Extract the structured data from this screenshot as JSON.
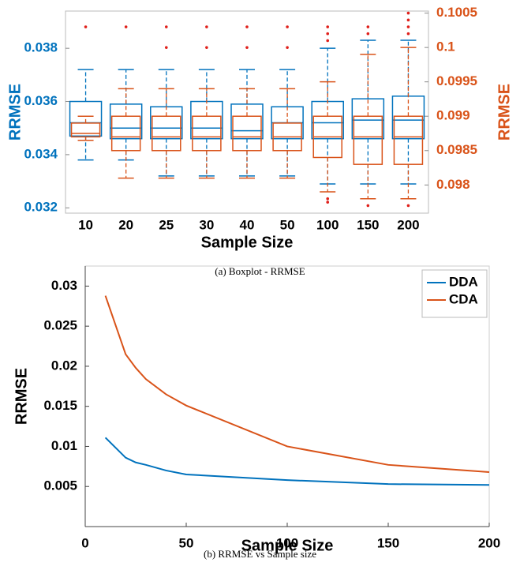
{
  "chart_data": [
    {
      "type": "box",
      "caption": "(a) Boxplot - RRMSE",
      "x_label": "Sample Size",
      "y_label": "RRMSE",
      "y2_label": "RRMSE",
      "categories": [
        "10",
        "20",
        "25",
        "30",
        "40",
        "50",
        "100",
        "150",
        "200"
      ],
      "ylim": [
        0.0318,
        0.0394
      ],
      "yticks": [
        0.032,
        0.034,
        0.036,
        0.038
      ],
      "y2lim": [
        0.09759,
        0.10053
      ],
      "y2ticks": [
        0.098,
        0.0985,
        0.099,
        0.0995,
        0.1,
        0.1005
      ],
      "series": [
        {
          "color": "#0072BD",
          "axis": "y",
          "boxes": [
            {
              "low": 0.0338,
              "q1": 0.0347,
              "median": 0.0352,
              "q3": 0.036,
              "high": 0.0372,
              "outliers": []
            },
            {
              "low": 0.0338,
              "q1": 0.0346,
              "median": 0.035,
              "q3": 0.0359,
              "high": 0.0372,
              "outliers": []
            },
            {
              "low": 0.0332,
              "q1": 0.0346,
              "median": 0.035,
              "q3": 0.0358,
              "high": 0.0372,
              "outliers": []
            },
            {
              "low": 0.0332,
              "q1": 0.0346,
              "median": 0.035,
              "q3": 0.036,
              "high": 0.0372,
              "outliers": []
            },
            {
              "low": 0.0332,
              "q1": 0.0346,
              "median": 0.0349,
              "q3": 0.0359,
              "high": 0.0372,
              "outliers": []
            },
            {
              "low": 0.0332,
              "q1": 0.0346,
              "median": 0.0352,
              "q3": 0.0358,
              "high": 0.0372,
              "outliers": []
            },
            {
              "low": 0.0329,
              "q1": 0.0346,
              "median": 0.0352,
              "q3": 0.036,
              "high": 0.038,
              "outliers": []
            },
            {
              "low": 0.0329,
              "q1": 0.0346,
              "median": 0.0353,
              "q3": 0.0361,
              "high": 0.0383,
              "outliers": []
            },
            {
              "low": 0.0329,
              "q1": 0.0346,
              "median": 0.0353,
              "q3": 0.0362,
              "high": 0.0383,
              "outliers": []
            }
          ]
        },
        {
          "color": "#D95319",
          "axis": "y2",
          "boxes": [
            {
              "low": 0.09865,
              "q1": 0.0987,
              "median": 0.09875,
              "q3": 0.0989,
              "high": 0.099,
              "outliers": [
                0.1003
              ]
            },
            {
              "low": 0.0981,
              "q1": 0.0985,
              "median": 0.0987,
              "q3": 0.099,
              "high": 0.0994,
              "outliers": [
                0.1003
              ]
            },
            {
              "low": 0.0981,
              "q1": 0.0985,
              "median": 0.0987,
              "q3": 0.099,
              "high": 0.0994,
              "outliers": [
                0.1003,
                0.1
              ]
            },
            {
              "low": 0.0981,
              "q1": 0.0985,
              "median": 0.0987,
              "q3": 0.099,
              "high": 0.0994,
              "outliers": [
                0.1003,
                0.1
              ]
            },
            {
              "low": 0.0981,
              "q1": 0.0985,
              "median": 0.0987,
              "q3": 0.099,
              "high": 0.0994,
              "outliers": [
                0.1003,
                0.1
              ]
            },
            {
              "low": 0.0981,
              "q1": 0.0985,
              "median": 0.0987,
              "q3": 0.0989,
              "high": 0.0994,
              "outliers": [
                0.1003,
                0.1
              ]
            },
            {
              "low": 0.0979,
              "q1": 0.0984,
              "median": 0.0987,
              "q3": 0.099,
              "high": 0.0995,
              "outliers": [
                0.1003,
                0.1002,
                0.1001,
                0.0978,
                0.09775
              ]
            },
            {
              "low": 0.0978,
              "q1": 0.0983,
              "median": 0.0987,
              "q3": 0.099,
              "high": 0.0999,
              "outliers": [
                0.1003,
                0.1002,
                0.0977
              ]
            },
            {
              "low": 0.0978,
              "q1": 0.0983,
              "median": 0.0987,
              "q3": 0.099,
              "high": 0.1,
              "outliers": [
                0.1005,
                0.1004,
                0.1003,
                0.1002,
                0.0977
              ]
            }
          ]
        }
      ]
    },
    {
      "type": "line",
      "caption": "(b) RRMSE vs Sample size",
      "x_label": "Sample Size",
      "y_label": "RRMSE",
      "x": [
        10,
        20,
        25,
        30,
        40,
        50,
        100,
        150,
        200
      ],
      "xlim": [
        0,
        200
      ],
      "xticks": [
        0,
        50,
        100,
        150,
        200
      ],
      "ylim": [
        0,
        0.0325
      ],
      "yticks": [
        0.005,
        0.01,
        0.015,
        0.02,
        0.025,
        0.03
      ],
      "legend": "upper right",
      "series": [
        {
          "name": "DDA",
          "color": "#0072BD",
          "values": [
            0.0111,
            0.0086,
            0.008,
            0.0077,
            0.007,
            0.0065,
            0.0058,
            0.0053,
            0.0052
          ]
        },
        {
          "name": "CDA",
          "color": "#D95319",
          "values": [
            0.0288,
            0.0215,
            0.0198,
            0.0184,
            0.0165,
            0.0151,
            0.01,
            0.0077,
            0.0068
          ]
        }
      ]
    }
  ]
}
